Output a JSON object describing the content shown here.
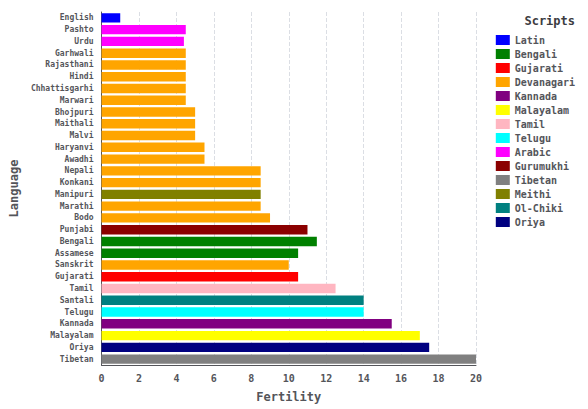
{
  "chart_data": {
    "type": "bar",
    "orientation": "horizontal",
    "categories": [
      "English",
      "Pashto",
      "Urdu",
      "Garhwali",
      "Rajasthani",
      "Hindi",
      "Chhattisgarhi",
      "Marwari",
      "Bhojpuri",
      "Maithali",
      "Malvi",
      "Haryanvi",
      "Awadhi",
      "Nepali",
      "Konkani",
      "Manipuri",
      "Marathi",
      "Bodo",
      "Punjabi",
      "Bengali",
      "Assamese",
      "Sanskrit",
      "Gujarati",
      "Tamil",
      "Santali",
      "Telugu",
      "Kannada",
      "Malayalam",
      "Oriya",
      "Tibetan"
    ],
    "values": [
      1.0,
      4.5,
      4.4,
      4.5,
      4.5,
      4.5,
      4.5,
      4.5,
      5.0,
      5.0,
      5.0,
      5.5,
      5.5,
      8.5,
      8.5,
      8.5,
      8.5,
      9.0,
      11.0,
      11.5,
      10.5,
      10.0,
      10.5,
      12.5,
      14.0,
      14.0,
      15.5,
      17.0,
      17.5,
      20.0
    ],
    "colors": [
      "#0000ff",
      "#ff00ff",
      "#ff00ff",
      "#ffa500",
      "#ffa500",
      "#ffa500",
      "#ffa500",
      "#ffa500",
      "#ffa500",
      "#ffa500",
      "#ffa500",
      "#ffa500",
      "#ffa500",
      "#ffa500",
      "#ffa500",
      "#808000",
      "#ffa500",
      "#ffa500",
      "#8b0000",
      "#008000",
      "#008000",
      "#ffa500",
      "#ff0000",
      "#ffb6c1",
      "#008080",
      "#00ffff",
      "#800080",
      "#ffff00",
      "#000080",
      "#808080"
    ],
    "legend_title": "Scripts",
    "legend_entries": [
      {
        "label": "Latin",
        "color": "#0000ff"
      },
      {
        "label": "Bengali",
        "color": "#008000"
      },
      {
        "label": "Gujarati",
        "color": "#ff0000"
      },
      {
        "label": "Devanagari",
        "color": "#ffa500"
      },
      {
        "label": "Kannada",
        "color": "#800080"
      },
      {
        "label": "Malayalam",
        "color": "#ffff00"
      },
      {
        "label": "Tamil",
        "color": "#ffb6c1"
      },
      {
        "label": "Telugu",
        "color": "#00ffff"
      },
      {
        "label": "Arabic",
        "color": "#ff00ff"
      },
      {
        "label": "Gurumukhi",
        "color": "#8b0000"
      },
      {
        "label": "Tibetan",
        "color": "#808080"
      },
      {
        "label": "Meithi",
        "color": "#808000"
      },
      {
        "label": "Ol-Chiki",
        "color": "#008080"
      },
      {
        "label": "Oriya",
        "color": "#000080"
      }
    ],
    "legend": "upper right",
    "xlabel": "Fertility",
    "ylabel": "Language",
    "xlim": [
      0,
      20
    ],
    "xticks": [
      0,
      2,
      4,
      6,
      8,
      10,
      12,
      14,
      16,
      18,
      20
    ],
    "grid": true
  }
}
